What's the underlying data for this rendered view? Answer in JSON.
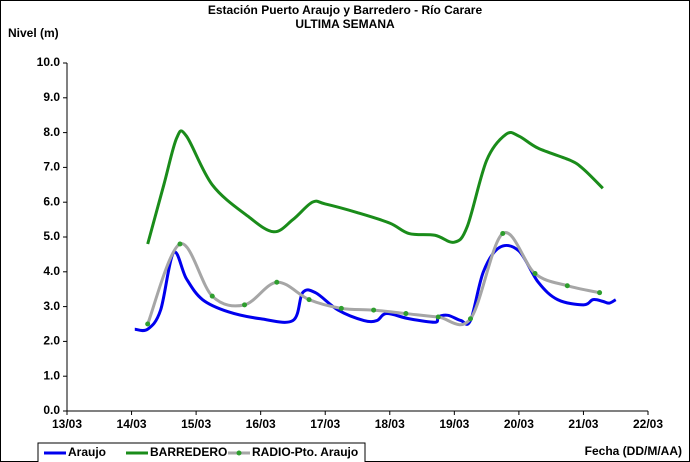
{
  "chart_data": {
    "type": "line",
    "title": "Estación Puerto Araujo y Barredero - Río Carare",
    "subtitle": "ULTIMA SEMANA",
    "y_label": "Nivel (m)",
    "x_label": "Fecha (DD/M/AA)",
    "xlim": [
      13,
      22
    ],
    "xticks": [
      {
        "value": 13,
        "label": "13/03"
      },
      {
        "value": 14,
        "label": "14/03"
      },
      {
        "value": 15,
        "label": "15/03"
      },
      {
        "value": 16,
        "label": "16/03"
      },
      {
        "value": 17,
        "label": "17/03"
      },
      {
        "value": 18,
        "label": "18/03"
      },
      {
        "value": 19,
        "label": "19/03"
      },
      {
        "value": 20,
        "label": "20/03"
      },
      {
        "value": 21,
        "label": "21/03"
      },
      {
        "value": 22,
        "label": "22/03"
      }
    ],
    "ylim": [
      0,
      10
    ],
    "yticks": [
      {
        "value": 0,
        "label": "0.0"
      },
      {
        "value": 1,
        "label": "1.0"
      },
      {
        "value": 2,
        "label": "2.0"
      },
      {
        "value": 3,
        "label": "3.0"
      },
      {
        "value": 4,
        "label": "4.0"
      },
      {
        "value": 5,
        "label": "5.0"
      },
      {
        "value": 6,
        "label": "6.0"
      },
      {
        "value": 7,
        "label": "7.0"
      },
      {
        "value": 8,
        "label": "8.0"
      },
      {
        "value": 9,
        "label": "9.0"
      },
      {
        "value": 10,
        "label": "10.0"
      }
    ],
    "grid": false,
    "legend": "bottom",
    "series": [
      {
        "name": "Araujo",
        "color": "#0000ee",
        "markers": false,
        "x": [
          14.05,
          14.25,
          14.45,
          14.65,
          14.85,
          15.1,
          15.5,
          16.0,
          16.5,
          16.65,
          16.85,
          17.2,
          17.6,
          17.8,
          17.95,
          18.3,
          18.7,
          18.75,
          18.9,
          19.1,
          19.25,
          19.45,
          19.7,
          20.0,
          20.3,
          20.6,
          21.0,
          21.15,
          21.3,
          21.4,
          21.5
        ],
        "values": [
          2.35,
          2.35,
          2.9,
          4.55,
          3.8,
          3.2,
          2.85,
          2.65,
          2.6,
          3.4,
          3.4,
          2.9,
          2.6,
          2.6,
          2.8,
          2.65,
          2.55,
          2.7,
          2.75,
          2.6,
          2.6,
          4.0,
          4.7,
          4.6,
          3.7,
          3.2,
          3.05,
          3.2,
          3.15,
          3.1,
          3.2
        ]
      },
      {
        "name": "BARREDERO",
        "color": "#1a8c1a",
        "markers": false,
        "x": [
          14.25,
          14.5,
          14.7,
          14.85,
          15.25,
          15.8,
          16.2,
          16.5,
          16.8,
          17.0,
          17.5,
          18.0,
          18.3,
          18.7,
          19.0,
          19.2,
          19.5,
          19.8,
          20.0,
          20.3,
          20.8,
          21.0,
          21.3
        ],
        "values": [
          4.8,
          6.5,
          7.85,
          7.9,
          6.5,
          5.6,
          5.15,
          5.5,
          6.0,
          5.95,
          5.7,
          5.4,
          5.1,
          5.05,
          4.85,
          5.3,
          7.2,
          7.95,
          7.9,
          7.55,
          7.2,
          6.95,
          6.4
        ]
      },
      {
        "name": "RADIO-Pto. Araujo",
        "color": "#a6a6a6",
        "marker_color": "#2e9e2e",
        "markers": true,
        "x": [
          14.25,
          14.75,
          15.25,
          15.75,
          16.25,
          16.75,
          17.25,
          17.75,
          18.25,
          18.75,
          19.25,
          19.75,
          20.25,
          20.75,
          21.25
        ],
        "values": [
          2.5,
          4.8,
          3.3,
          3.05,
          3.7,
          3.2,
          2.95,
          2.9,
          2.8,
          2.7,
          2.65,
          5.1,
          3.95,
          3.6,
          3.4
        ]
      }
    ]
  }
}
